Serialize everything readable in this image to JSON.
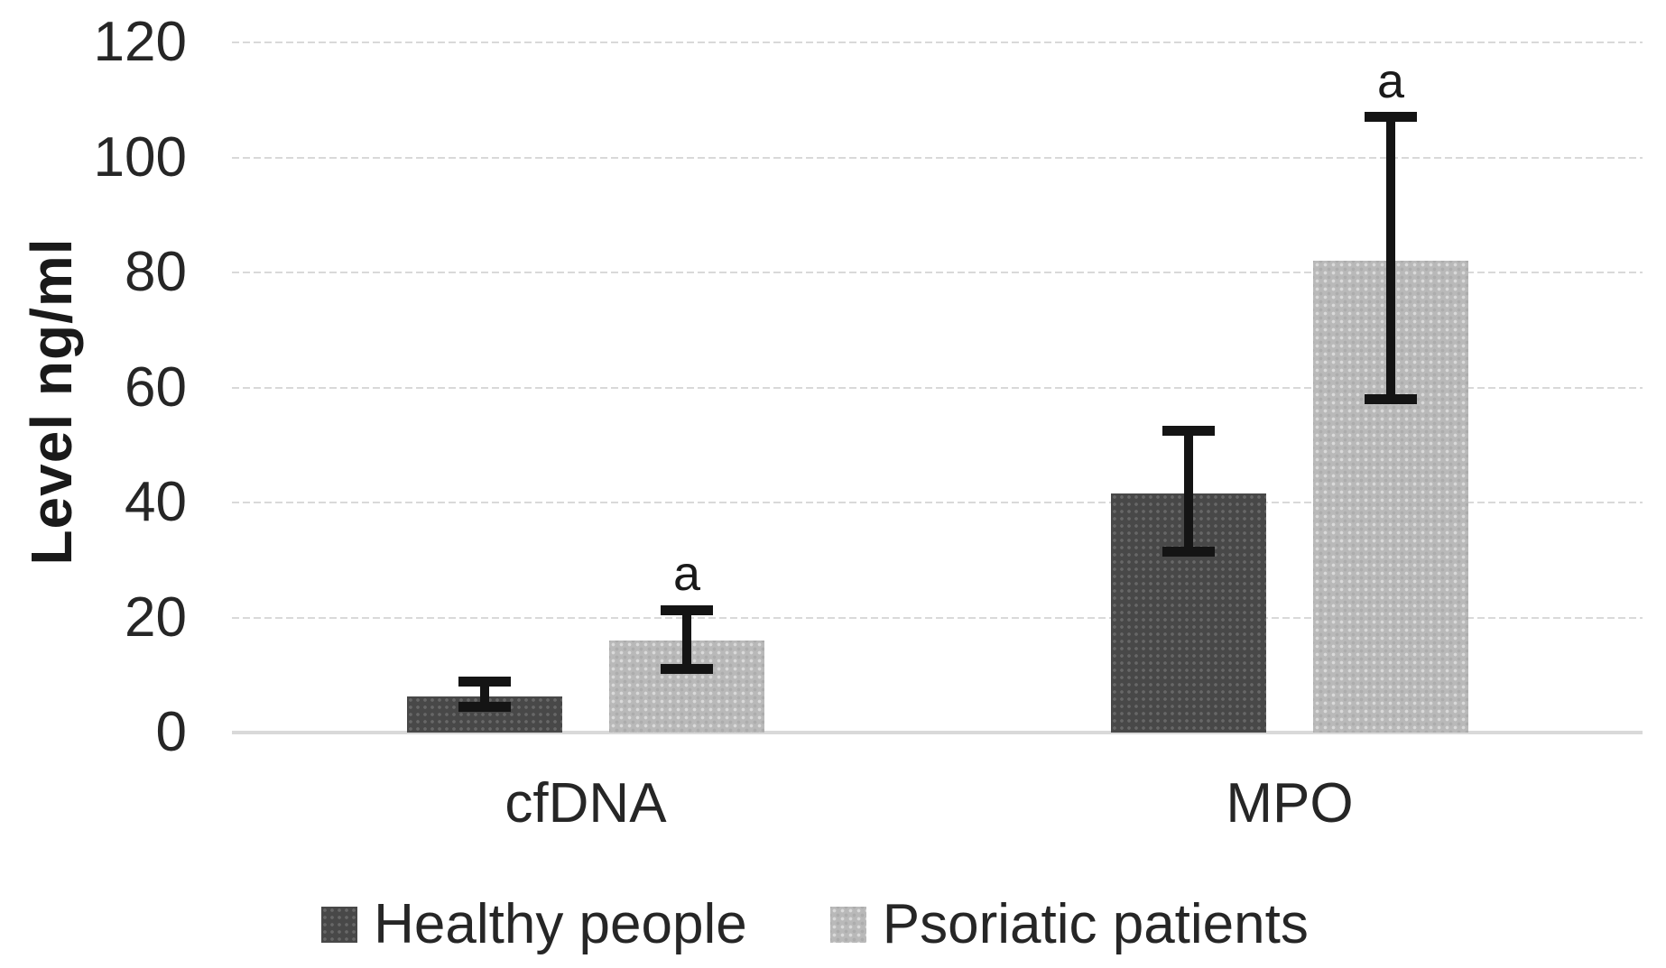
{
  "figure": {
    "background_color": "#ffffff",
    "gridline_color": "#d9d9d9",
    "axis_line_color": "#d9d9d9",
    "error_bar_color": "#141414",
    "text_color": "#262626"
  },
  "chart_data": {
    "type": "bar",
    "title": "",
    "xlabel": "",
    "ylabel": "Level ng/ml",
    "categories": [
      "cfDNA",
      "MPO"
    ],
    "series": [
      {
        "name": "Healthy people",
        "values": [
          6.3,
          41.5
        ],
        "error_low": [
          4.5,
          31.5
        ],
        "error_high": [
          8.8,
          52.5
        ],
        "color": "#484848",
        "annotations": [
          "",
          ""
        ]
      },
      {
        "name": "Psoriatic patients",
        "values": [
          16,
          82
        ],
        "error_low": [
          11,
          58
        ],
        "error_high": [
          21.3,
          107
        ],
        "color": "#b9b9b9",
        "annotations": [
          "a",
          "a"
        ]
      }
    ],
    "ylim": [
      0,
      120
    ],
    "yticks": [
      0,
      20,
      40,
      60,
      80,
      100,
      120
    ],
    "grid": true,
    "legend_position": "bottom",
    "significance_label": "a"
  }
}
